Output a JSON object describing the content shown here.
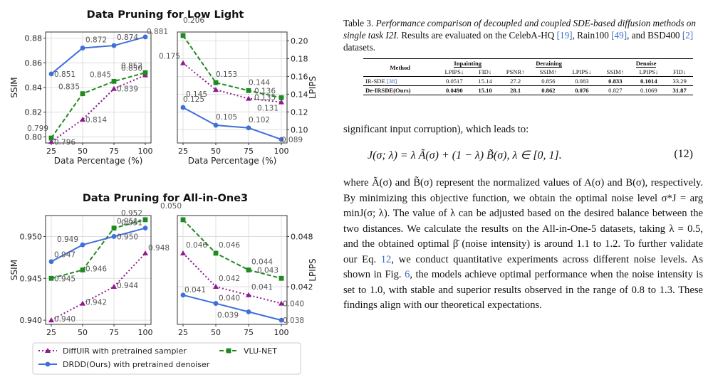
{
  "figure": {
    "panel_titles": [
      "Data Pruning for Low Light",
      "Data Pruning for All-in-One3"
    ],
    "xlabel": "Data Percentage (%)",
    "left_ylabel": "SSIM",
    "right_ylabel": "LPIPS",
    "legend": [
      "DiffUIR with pretrained sampler",
      "VLU-NET",
      "DRDD(Ours) with pretrained denoiser"
    ],
    "colors": {
      "diffuir": "#8e1a8e",
      "vlunet": "#1f8a1f",
      "drdd": "#3f6fd8"
    }
  },
  "chart_data": [
    {
      "type": "line",
      "title": "Data Pruning for Low Light",
      "xlabel": "Data Percentage (%)",
      "ylabel": "SSIM",
      "x": [
        25,
        50,
        75,
        100
      ],
      "ylim": [
        0.795,
        0.885
      ],
      "series": [
        {
          "name": "DiffUIR with pretrained sampler",
          "values": [
            0.796,
            0.814,
            0.839,
            0.85
          ]
        },
        {
          "name": "VLU-NET",
          "values": [
            0.799,
            0.835,
            0.845,
            0.852
          ]
        },
        {
          "name": "DRDD(Ours) with pretrained denoiser",
          "values": [
            0.851,
            0.872,
            0.874,
            0.881
          ]
        }
      ]
    },
    {
      "type": "line",
      "xlabel": "Data Percentage (%)",
      "ylabel": "LPIPS",
      "x": [
        25,
        50,
        75,
        100
      ],
      "ylim": [
        0.085,
        0.21
      ],
      "series": [
        {
          "name": "DiffUIR with pretrained sampler",
          "values": [
            0.175,
            0.145,
            0.135,
            0.131
          ]
        },
        {
          "name": "VLU-NET",
          "values": [
            0.206,
            0.153,
            0.144,
            0.136
          ]
        },
        {
          "name": "DRDD(Ours) with pretrained denoiser",
          "values": [
            0.125,
            0.105,
            0.102,
            0.089
          ]
        }
      ]
    },
    {
      "type": "line",
      "title": "Data Pruning for All-in-One3",
      "ylabel": "SSIM",
      "x": [
        25,
        50,
        75,
        100
      ],
      "ylim": [
        0.9395,
        0.9525
      ],
      "series": [
        {
          "name": "DiffUIR with pretrained sampler",
          "values": [
            0.94,
            0.942,
            0.944,
            0.948
          ]
        },
        {
          "name": "VLU-NET",
          "values": [
            0.945,
            0.946,
            0.951,
            0.952
          ]
        },
        {
          "name": "DRDD(Ours) with pretrained denoiser",
          "values": [
            0.947,
            0.949,
            0.95,
            0.951
          ]
        }
      ]
    },
    {
      "type": "line",
      "ylabel": "LPIPS",
      "x": [
        25,
        50,
        75,
        100
      ],
      "ylim": [
        0.0375,
        0.0505
      ],
      "series": [
        {
          "name": "DiffUIR with pretrained sampler",
          "values": [
            0.046,
            0.042,
            0.041,
            0.04
          ]
        },
        {
          "name": "VLU-NET",
          "values": [
            0.05,
            0.046,
            0.044,
            0.043
          ]
        },
        {
          "name": "DRDD(Ours) with pretrained denoiser",
          "values": [
            0.041,
            0.04,
            0.039,
            0.038
          ]
        }
      ]
    }
  ],
  "ticks": {
    "p1y": [
      "0.80",
      "0.82",
      "0.84",
      "0.86",
      "0.88"
    ],
    "p1yv": [
      0.8,
      0.82,
      0.84,
      0.86,
      0.88
    ],
    "p2y": [
      "0.10",
      "0.12",
      "0.14",
      "0.16",
      "0.18",
      "0.20"
    ],
    "p2yv": [
      0.1,
      0.12,
      0.14,
      0.16,
      0.18,
      0.2
    ],
    "p3y": [
      "0.940",
      "0.945",
      "0.950"
    ],
    "p3yv": [
      0.94,
      0.945,
      0.95
    ],
    "p4y": [
      "0.042",
      "0.048"
    ],
    "p4yv": [
      0.042,
      0.048
    ],
    "x": [
      "25",
      "50",
      "75",
      "100"
    ]
  },
  "labels": [
    [
      [
        "0.796",
        "0.814",
        "0.839",
        "0.850"
      ],
      [
        "0.799",
        "0.835",
        "0.845",
        "0.852"
      ],
      [
        "0.851",
        "0.872",
        "0.874",
        "0.881"
      ]
    ],
    [
      [
        "0.175",
        "0.145",
        "0.135",
        "0.131"
      ],
      [
        "0.206",
        "0.153",
        "0.144",
        "0.136"
      ],
      [
        "0.125",
        "0.105",
        "0.102",
        "0.089"
      ]
    ],
    [
      [
        "0.940",
        "0.942",
        "0.944",
        "0.948"
      ],
      [
        "0.945",
        "0.946",
        "0.951",
        "0.952"
      ],
      [
        "0.947",
        "0.949",
        "0.950",
        "0.951"
      ]
    ],
    [
      [
        "0.046",
        "0.042",
        "0.041",
        "0.040"
      ],
      [
        "0.050",
        "0.046",
        "0.044",
        "0.043"
      ],
      [
        "0.041",
        "0.040",
        "0.039",
        "0.038"
      ]
    ]
  ],
  "caption": {
    "lead": "Table 3.",
    "italic": "Performance comparison of decoupled and coupled SDE-based diffusion methods on single task I2I.",
    "rest": "Results are evaluated on the CelebA-HQ",
    "ref1": "[19]",
    "mid1": ", Rain100",
    "ref2": "[49]",
    "mid2": ", and BSD400",
    "ref3": "[2]",
    "tail": "datasets."
  },
  "table": {
    "method_header": "Method",
    "groups": [
      "Inpainting",
      "Deraining",
      "Denoise"
    ],
    "subheaders": [
      "LPIPS↓",
      "FID↓",
      "PSNR↑",
      "SSIM↑",
      "LPIPS↓",
      "SSIM↑",
      "LPIPS↓",
      "FID↓"
    ],
    "rows": [
      {
        "method": "IR-SDE",
        "ref": "[38]",
        "values": [
          "0.0517",
          "15.14",
          "27.2",
          "0.856",
          "0.083",
          "0.833",
          "0.1014",
          "33.29"
        ]
      },
      {
        "method": "De-IRSDE(Ours)",
        "values": [
          "0.0490",
          "15.10",
          "28.1",
          "0.862",
          "0.076",
          "0.827",
          "0.1069",
          "31.87"
        ]
      }
    ]
  },
  "text": {
    "p1": "significant input corruption), which leads to:",
    "eq": "J(σ; λ) = λ Ã(σ) + (1 − λ) B̃(σ),    λ ∈ [0, 1].",
    "eq_num": "(12)",
    "p2a": "where Ã(σ) and B̃(σ) represent the normalized values of A(σ) and B(σ), respectively. By minimizing this objective function, we obtain the optimal noise level σ*J = arg minJ(σ; λ). The value of λ can be adjusted based on the desired balance between the two distances. We calculate the results on the All-in-One-5 datasets, taking λ = 0.5, and the obtained optimal β̄ (noise intensity) is around 1.1 to 1.2. To further validate our Eq.",
    "p2_ref1": "12",
    "p2b": ", we conduct quantitative experiments across different noise levels. As shown in Fig.",
    "p2_ref2": "6",
    "p2c": ", the models achieve optimal performance when the noise intensity is set to 1.0, with stable and superior results observed in the range of 0.8 to 1.3. These findings align with",
    "p2d": "our theoretical expectations."
  }
}
